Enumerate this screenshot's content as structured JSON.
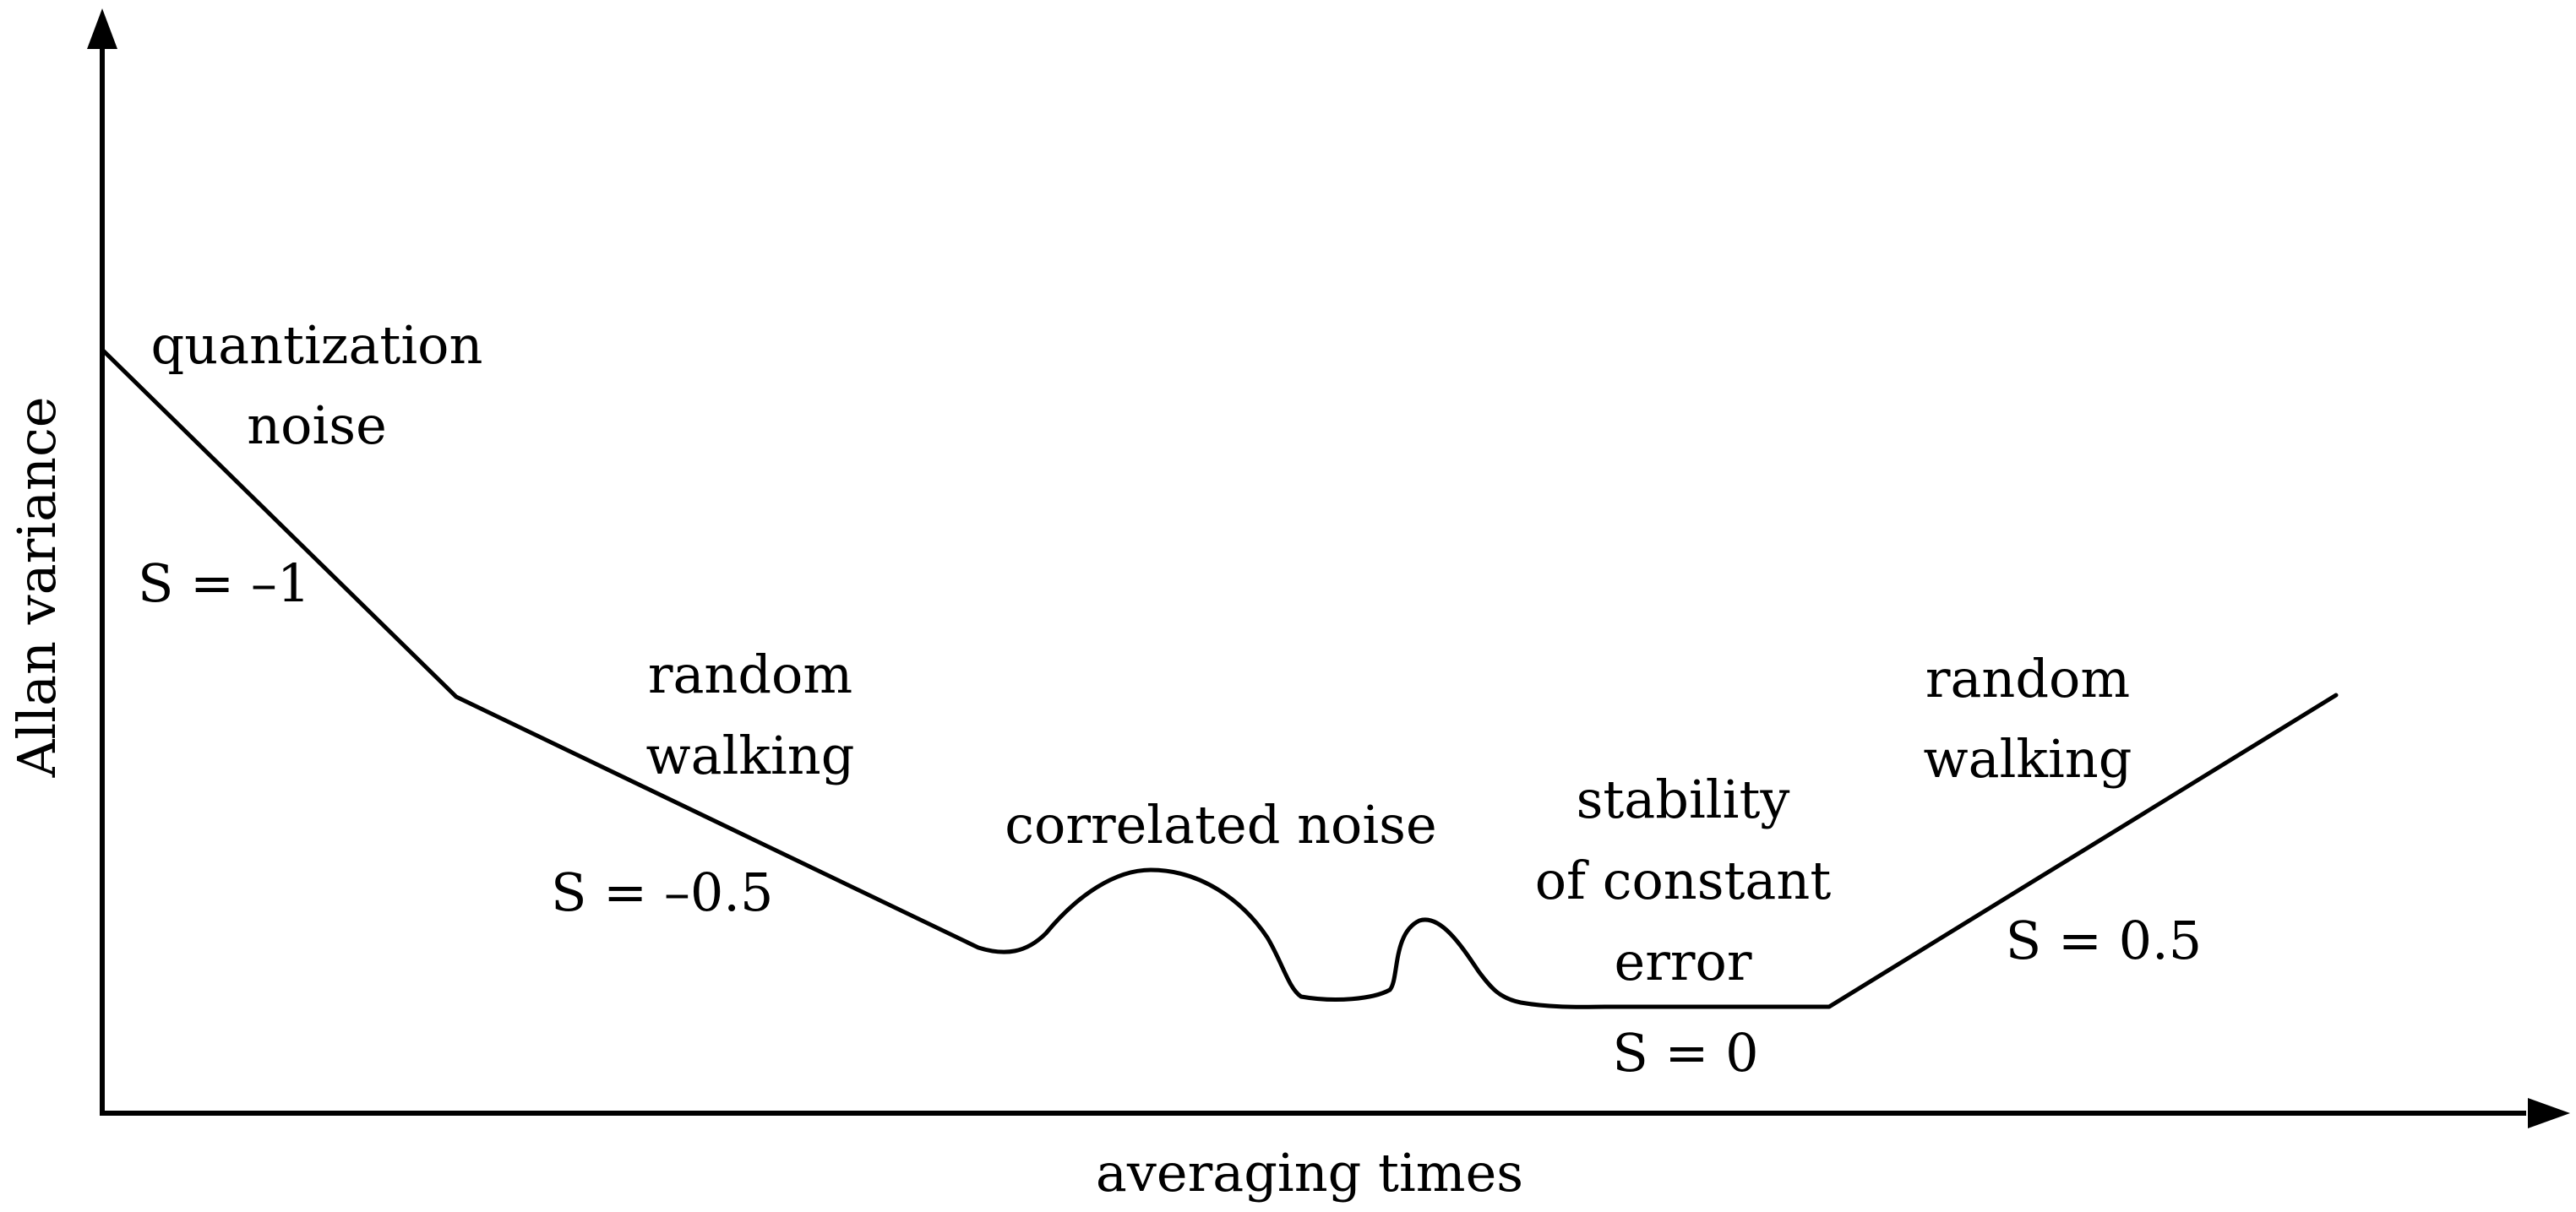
{
  "axes": {
    "y_label": "Allan variance",
    "x_label": "averaging times"
  },
  "regions": [
    {
      "id": "quantization",
      "name_lines": [
        "quantization",
        "noise"
      ],
      "slope_label": "S = –1"
    },
    {
      "id": "random-walk-left",
      "name_lines": [
        "random",
        "walking"
      ],
      "slope_label": "S = –0.5"
    },
    {
      "id": "correlated",
      "name_lines": [
        "correlated noise"
      ]
    },
    {
      "id": "stability",
      "name_lines": [
        "stability",
        "of constant",
        "error"
      ],
      "slope_label": "S = 0"
    },
    {
      "id": "random-walk-right",
      "name_lines": [
        "random",
        "walking"
      ],
      "slope_label": "S = 0.5"
    }
  ],
  "colors": {
    "ink": "#000000",
    "background": "#ffffff"
  }
}
